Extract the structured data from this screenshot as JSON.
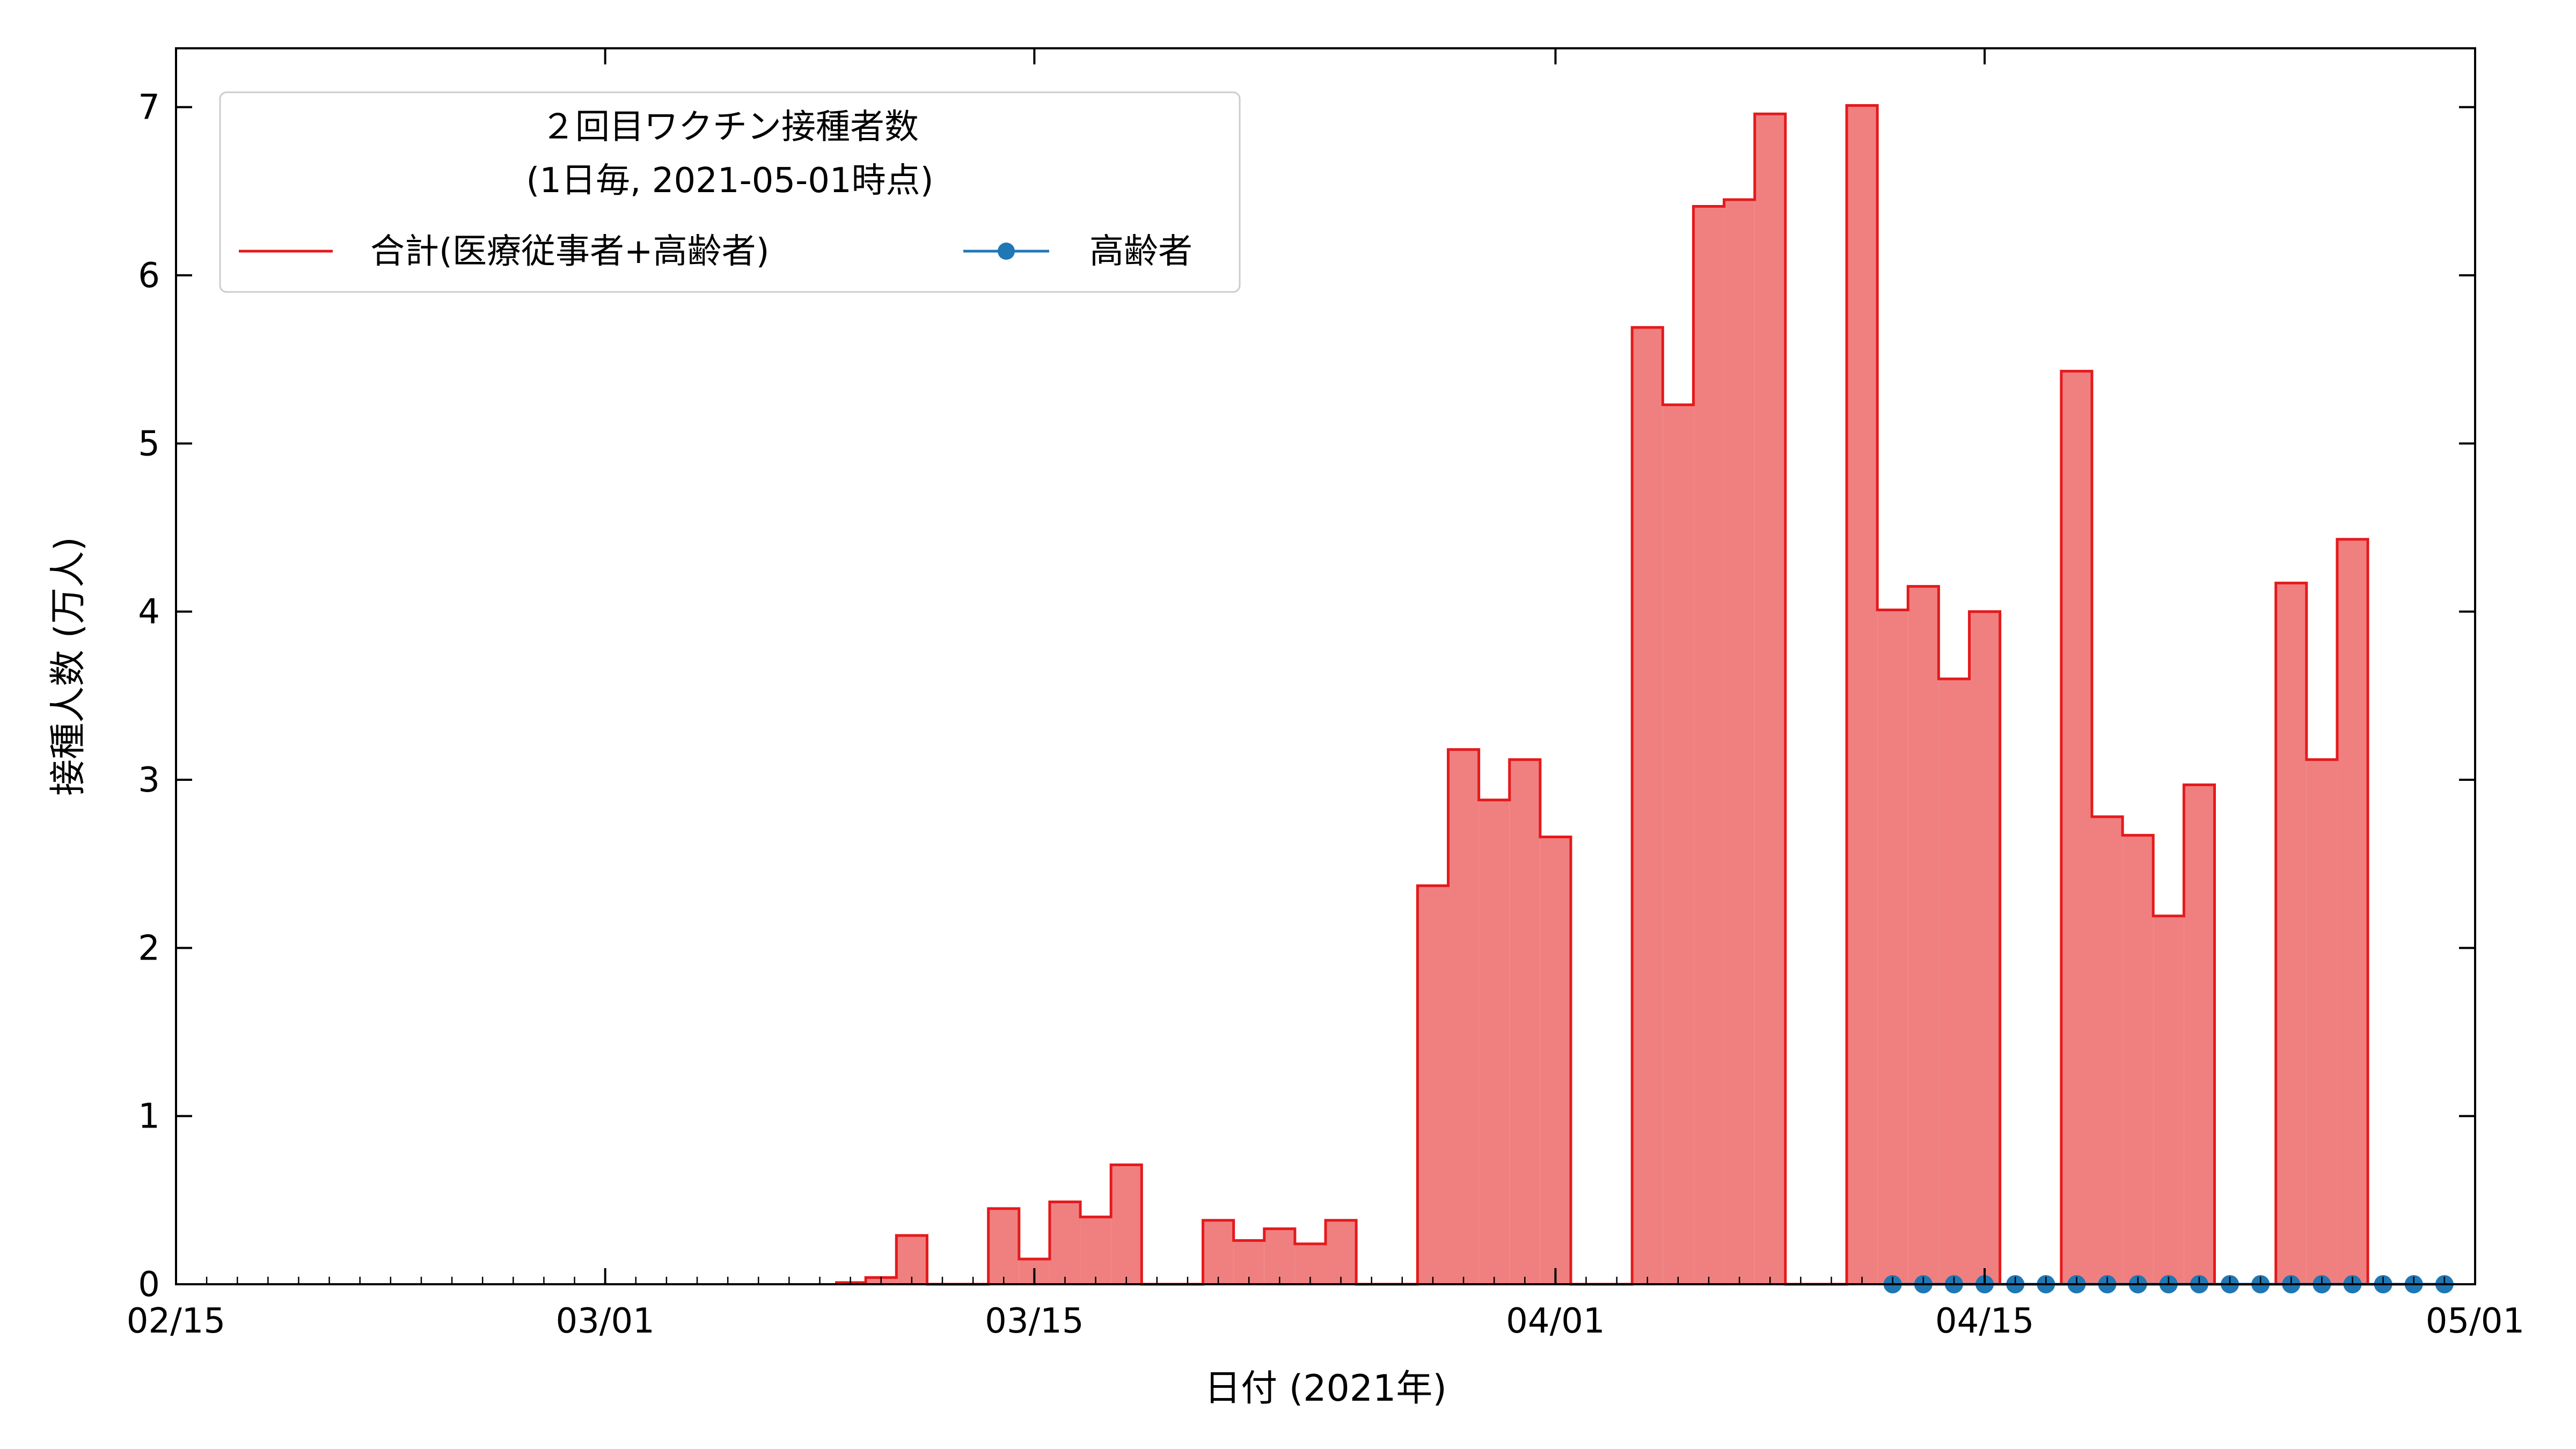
{
  "chart_data": {
    "type": "area",
    "legend": {
      "title_line1": "２回目ワクチン接種者数",
      "title_line2": "(1日毎, 2021-05-01時点)",
      "placement": "top-left"
    },
    "xlabel": "日付 (2021年)",
    "ylabel": "接種人数 (万人)",
    "xlim": [
      "2021-02-15",
      "2021-05-01"
    ],
    "ylim": [
      0,
      7.35
    ],
    "x_ticks": [
      {
        "date": "2021-02-15",
        "label": "02/15"
      },
      {
        "date": "2021-03-01",
        "label": "03/01"
      },
      {
        "date": "2021-03-15",
        "label": "03/15"
      },
      {
        "date": "2021-04-01",
        "label": "04/01"
      },
      {
        "date": "2021-04-15",
        "label": "04/15"
      },
      {
        "date": "2021-05-01",
        "label": "05/01"
      }
    ],
    "y_ticks": [
      0,
      1,
      2,
      3,
      4,
      5,
      6,
      7
    ],
    "grid": false,
    "colors": {
      "total_line": "#e41a1c",
      "total_fill": "#f08080",
      "elderly": "#1f77b4"
    },
    "series": [
      {
        "name": "合計(医療従事者+高齢者)",
        "style": "step-fill",
        "points": [
          [
            "2021-03-09",
            0.01
          ],
          [
            "2021-03-10",
            0.04
          ],
          [
            "2021-03-11",
            0.29
          ],
          [
            "2021-03-12",
            0
          ],
          [
            "2021-03-13",
            0
          ],
          [
            "2021-03-14",
            0.45
          ],
          [
            "2021-03-15",
            0.15
          ],
          [
            "2021-03-16",
            0.49
          ],
          [
            "2021-03-17",
            0.4
          ],
          [
            "2021-03-18",
            0.71
          ],
          [
            "2021-03-19",
            0
          ],
          [
            "2021-03-20",
            0
          ],
          [
            "2021-03-21",
            0.38
          ],
          [
            "2021-03-22",
            0.26
          ],
          [
            "2021-03-23",
            0.33
          ],
          [
            "2021-03-24",
            0.24
          ],
          [
            "2021-03-25",
            0.38
          ],
          [
            "2021-03-26",
            0
          ],
          [
            "2021-03-27",
            0
          ],
          [
            "2021-03-28",
            2.37
          ],
          [
            "2021-03-29",
            3.18
          ],
          [
            "2021-03-30",
            2.88
          ],
          [
            "2021-03-31",
            3.12
          ],
          [
            "2021-04-01",
            2.66
          ],
          [
            "2021-04-02",
            0
          ],
          [
            "2021-04-03",
            0
          ],
          [
            "2021-04-04",
            5.69
          ],
          [
            "2021-04-05",
            5.23
          ],
          [
            "2021-04-06",
            6.41
          ],
          [
            "2021-04-07",
            6.45
          ],
          [
            "2021-04-08",
            6.96
          ],
          [
            "2021-04-09",
            0
          ],
          [
            "2021-04-10",
            0
          ],
          [
            "2021-04-11",
            7.01
          ],
          [
            "2021-04-12",
            4.01
          ],
          [
            "2021-04-13",
            4.15
          ],
          [
            "2021-04-14",
            3.6
          ],
          [
            "2021-04-15",
            4.0
          ],
          [
            "2021-04-16",
            0
          ],
          [
            "2021-04-17",
            0
          ],
          [
            "2021-04-18",
            5.43
          ],
          [
            "2021-04-19",
            2.78
          ],
          [
            "2021-04-20",
            2.67
          ],
          [
            "2021-04-21",
            2.19
          ],
          [
            "2021-04-22",
            2.97
          ],
          [
            "2021-04-23",
            0
          ],
          [
            "2021-04-24",
            0
          ],
          [
            "2021-04-25",
            4.17
          ],
          [
            "2021-04-26",
            3.12
          ],
          [
            "2021-04-27",
            4.43
          ],
          [
            "2021-04-28",
            0
          ]
        ]
      },
      {
        "name": "高齢者",
        "style": "line-markers",
        "points": [
          [
            "2021-04-12",
            0
          ],
          [
            "2021-04-13",
            0
          ],
          [
            "2021-04-14",
            0
          ],
          [
            "2021-04-15",
            0
          ],
          [
            "2021-04-16",
            0
          ],
          [
            "2021-04-17",
            0
          ],
          [
            "2021-04-18",
            0
          ],
          [
            "2021-04-19",
            0
          ],
          [
            "2021-04-20",
            0
          ],
          [
            "2021-04-21",
            0
          ],
          [
            "2021-04-22",
            0
          ],
          [
            "2021-04-23",
            0
          ],
          [
            "2021-04-24",
            0
          ],
          [
            "2021-04-25",
            0
          ],
          [
            "2021-04-26",
            0
          ],
          [
            "2021-04-27",
            0
          ],
          [
            "2021-04-28",
            0
          ],
          [
            "2021-04-29",
            0
          ],
          [
            "2021-04-30",
            0
          ]
        ]
      }
    ]
  }
}
